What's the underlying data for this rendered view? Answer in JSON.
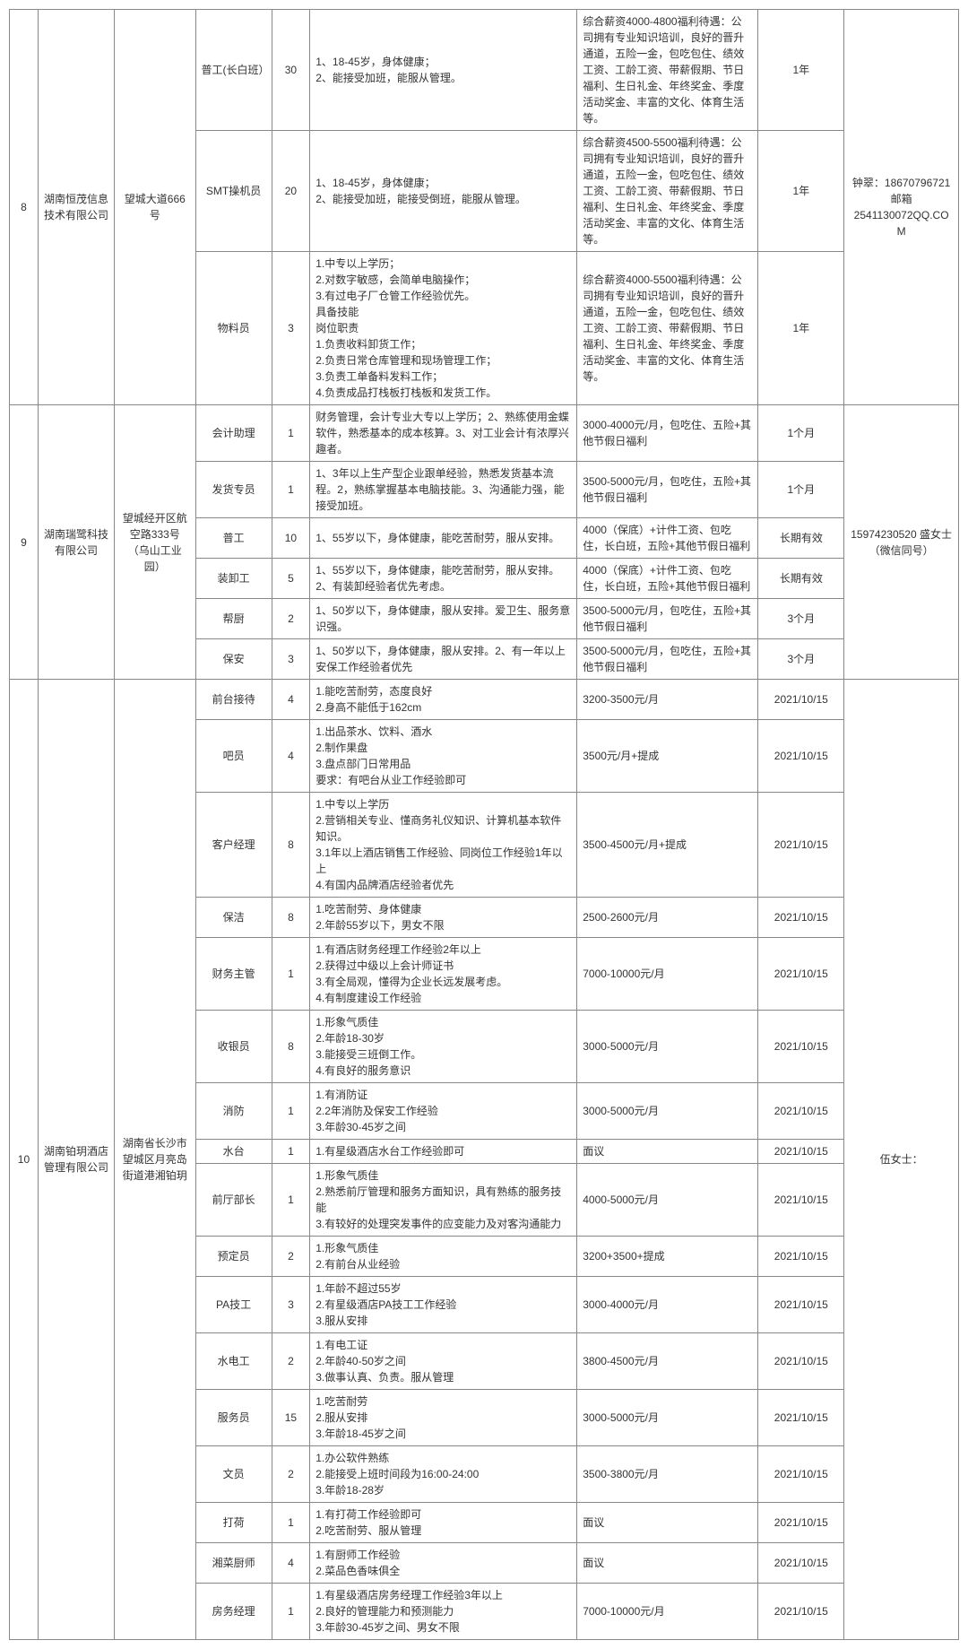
{
  "groups": [
    {
      "idx": "8",
      "company": "湖南恒茂信息技术有限公司",
      "address": "望城大道666号",
      "contact": "钟翠：18670796721 邮箱2541130072QQ.COM",
      "rows": [
        {
          "position": "普工(长白班）",
          "count": "30",
          "req": "1、18-45岁，身体健康；\n2、能接受加班，能服从管理。",
          "salary": "综合薪资4000-4800福利待遇：公司拥有专业知识培训，良好的晋升通道，五险一金，包吃包住、绩效工资、工龄工资、带薪假期、节日福利、生日礼金、年终奖金、季度活动奖金、丰富的文化、体育生活等。",
          "valid": "1年"
        },
        {
          "position": "SMT操机员",
          "count": "20",
          "req": "1、18-45岁，身体健康；\n2、能接受加班，能接受倒班，能服从管理。",
          "salary": "综合薪资4500-5500福利待遇：公司拥有专业知识培训，良好的晋升通道，五险一金，包吃包住、绩效工资、工龄工资、带薪假期、节日福利、生日礼金、年终奖金、季度活动奖金、丰富的文化、体育生活等。",
          "valid": "1年"
        },
        {
          "position": "物料员",
          "count": "3",
          "req": "1.中专以上学历；\n2.对数字敏感，会简单电脑操作；\n3.有过电子厂仓管工作经验优先。\n具备技能\n岗位职责\n1.负责收料卸货工作；\n2.负责日常仓库管理和现场管理工作；\n3.负责工单备料发料工作；\n4.负责成品打栈板打栈板和发货工作。",
          "salary": "综合薪资4000-5500福利待遇：公司拥有专业知识培训，良好的晋升通道，五险一金，包吃包住、绩效工资、工龄工资、带薪假期、节日福利、生日礼金、年终奖金、季度活动奖金、丰富的文化、体育生活等。",
          "valid": "1年"
        }
      ]
    },
    {
      "idx": "9",
      "company": "湖南瑞鹭科技有限公司",
      "address": "望城经开区航空路333号（乌山工业园）",
      "contact": "15974230520 盛女士（微信同号）",
      "rows": [
        {
          "position": "会计助理",
          "count": "1",
          "req": "财务管理，会计专业大专以上学历；2、熟练使用金蝶软件，熟悉基本的成本核算。3、对工业会计有浓厚兴趣者。",
          "salary": "3000-4000元/月，包吃住、五险+其他节假日福利",
          "valid": "1个月"
        },
        {
          "position": "发货专员",
          "count": "1",
          "req": "1、3年以上生产型企业跟单经验，熟悉发货基本流程。2，熟练掌握基本电脑技能。3、沟通能力强，能接受加班。",
          "salary": "3500-5000元/月，包吃住，五险+其他节假日福利",
          "valid": "1个月"
        },
        {
          "position": "普工",
          "count": "10",
          "req": "1、55岁以下，身体健康，能吃苦耐劳，服从安排。",
          "salary": "4000（保底）+计件工资、包吃住，长白班，五险+其他节假日福利",
          "valid": "长期有效"
        },
        {
          "position": "装卸工",
          "count": "5",
          "req": "1、55岁以下，身体健康，能吃苦耐劳，服从安排。2、有装卸经验者优先考虑。",
          "salary": "4000（保底）+计件工资、包吃住，长白班，五险+其他节假日福利",
          "valid": "长期有效"
        },
        {
          "position": "帮厨",
          "count": "2",
          "req": "1、50岁以下，身体健康，服从安排。爱卫生、服务意识强。",
          "salary": "3500-5000元/月，包吃住，五险+其他节假日福利",
          "valid": "3个月"
        },
        {
          "position": "保安",
          "count": "3",
          "req": "1、50岁以下，身体健康，服从安排。2、有一年以上安保工作经验者优先",
          "salary": "3500-5000元/月，包吃住，五险+其他节假日福利",
          "valid": "3个月"
        }
      ]
    },
    {
      "idx": "10",
      "company": "湖南铂玥酒店管理有限公司",
      "address": "湖南省长沙市望城区月亮岛街道港湘铂玥",
      "contact": "伍女士：",
      "rows": [
        {
          "position": "前台接待",
          "count": "4",
          "req": "1.能吃苦耐劳，态度良好\n2.身高不能低于162cm",
          "salary": "3200-3500元/月",
          "valid": "2021/10/15"
        },
        {
          "position": "吧员",
          "count": "4",
          "req": "1.出品茶水、饮料、酒水\n2.制作果盘\n3.盘点部门日常用品\n要求：有吧台从业工作经验即可",
          "salary": "3500元/月+提成",
          "valid": "2021/10/15"
        },
        {
          "position": "客户经理",
          "count": "8",
          "req": "1.中专以上学历\n2.营销相关专业、懂商务礼仪知识、计算机基本软件知识。\n3.1年以上酒店销售工作经验、同岗位工作经验1年以上\n4.有国内品牌酒店经验者优先",
          "salary": "3500-4500元/月+提成",
          "valid": "2021/10/15"
        },
        {
          "position": "保洁",
          "count": "8",
          "req": "1.吃苦耐劳、身体健康\n2.年龄55岁以下，男女不限",
          "salary": "2500-2600元/月",
          "valid": "2021/10/15"
        },
        {
          "position": "财务主管",
          "count": "1",
          "req": "1.有酒店财务经理工作经验2年以上\n2.获得过中级以上会计师证书\n3.有全局观，懂得为企业长远发展考虑。\n4.有制度建设工作经验",
          "salary": "7000-10000元/月",
          "valid": "2021/10/15"
        },
        {
          "position": "收银员",
          "count": "8",
          "req": "1.形象气质佳\n2.年龄18-30岁\n3.能接受三班倒工作。\n4.有良好的服务意识",
          "salary": "3000-5000元/月",
          "valid": "2021/10/15"
        },
        {
          "position": "消防",
          "count": "1",
          "req": "1.有消防证\n2.2年消防及保安工作经验\n3.年龄30-45岁之间",
          "salary": "3000-5000元/月",
          "valid": "2021/10/15"
        },
        {
          "position": "水台",
          "count": "1",
          "req": "1.有星级酒店水台工作经验即可",
          "salary": "面议",
          "valid": "2021/10/15"
        },
        {
          "position": "前厅部长",
          "count": "1",
          "req": "1.形象气质佳\n2.熟悉前厅管理和服务方面知识，具有熟练的服务技能\n3.有较好的处理突发事件的应变能力及对客沟通能力",
          "salary": "4000-5000元/月",
          "valid": "2021/10/15"
        },
        {
          "position": "预定员",
          "count": "2",
          "req": "1.形象气质佳\n2.有前台从业经验",
          "salary": "3200+3500+提成",
          "valid": "2021/10/15"
        },
        {
          "position": "PA技工",
          "count": "3",
          "req": "1.年龄不超过55岁\n2.有星级酒店PA技工工作经验\n3.服从安排",
          "salary": "3000-4000元/月",
          "valid": "2021/10/15"
        },
        {
          "position": "水电工",
          "count": "2",
          "req": "1.有电工证\n2.年龄40-50岁之间\n3.做事认真、负责。服从管理",
          "salary": "3800-4500元/月",
          "valid": "2021/10/15"
        },
        {
          "position": "服务员",
          "count": "15",
          "req": "1.吃苦耐劳\n2.服从安排\n3.年龄18-45岁之间",
          "salary": "3000-5000元/月",
          "valid": "2021/10/15"
        },
        {
          "position": "文员",
          "count": "2",
          "req": "1.办公软件熟练\n2.能接受上班时间段为16:00-24:00\n3.年龄18-28岁",
          "salary": "3500-3800元/月",
          "valid": "2021/10/15"
        },
        {
          "position": "打荷",
          "count": "1",
          "req": "1.有打荷工作经验即可\n2.吃苦耐劳、服从管理",
          "salary": "面议",
          "valid": "2021/10/15"
        },
        {
          "position": "湘菜厨师",
          "count": "4",
          "req": "1.有厨师工作经验\n2.菜品色香味俱全",
          "salary": "面议",
          "valid": "2021/10/15"
        },
        {
          "position": "房务经理",
          "count": "1",
          "req": "1.有星级酒店房务经理工作经验3年以上\n2.良好的管理能力和预测能力\n3.年龄30-45岁之间、男女不限",
          "salary": "7000-10000元/月",
          "valid": "2021/10/15"
        }
      ]
    }
  ]
}
